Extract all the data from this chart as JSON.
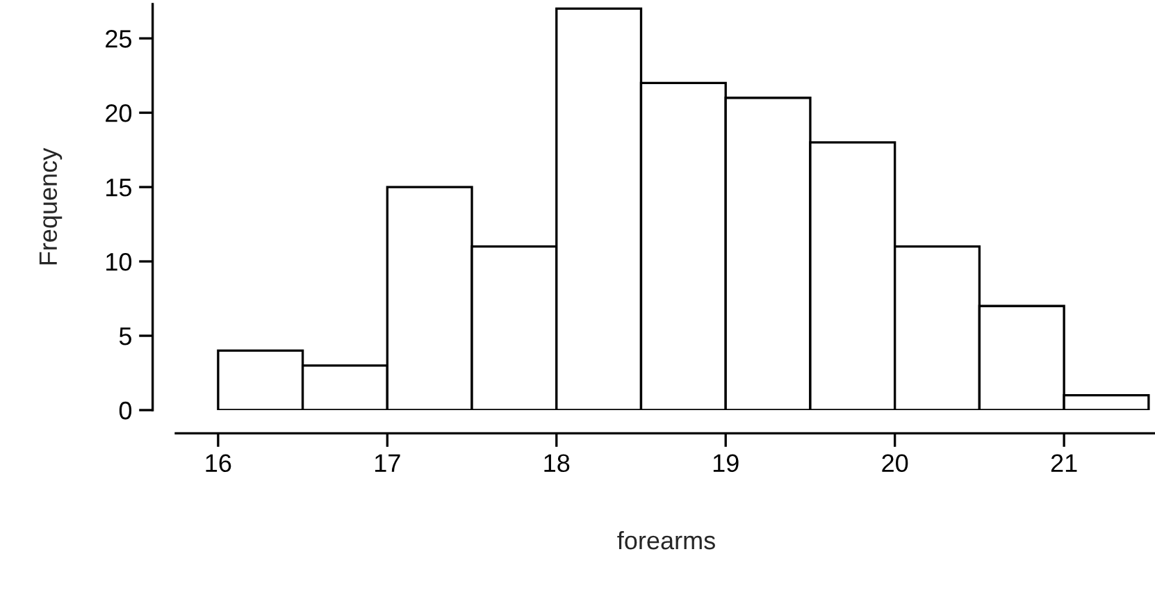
{
  "chart_data": {
    "type": "histogram",
    "xlabel": "forearms",
    "ylabel": "Frequency",
    "bins": [
      16,
      16.5,
      17,
      17.5,
      18,
      18.5,
      19,
      19.5,
      20,
      20.5,
      21,
      21.5
    ],
    "values": [
      4,
      3,
      15,
      11,
      27,
      22,
      21,
      18,
      11,
      7,
      1
    ],
    "color": "#ffffff",
    "xlim": [
      15.75,
      21.55
    ],
    "ylim": [
      0,
      27.3
    ],
    "xticks": [
      16,
      17,
      18,
      19,
      20,
      21
    ],
    "yticks": [
      0,
      5,
      10,
      15,
      20,
      25
    ],
    "grid": false
  }
}
